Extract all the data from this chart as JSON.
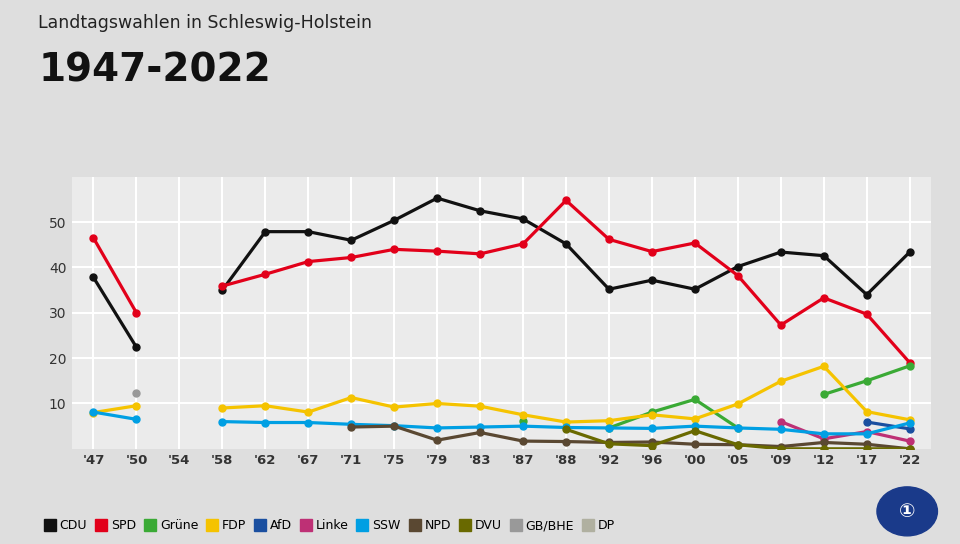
{
  "title_top": "Landtagswahlen in Schleswig-Holstein",
  "title_main": "1947-2022",
  "year_labels": [
    "'47",
    "'50",
    "'54",
    "'58",
    "'62",
    "'67",
    "'71",
    "'75",
    "'79",
    "'83",
    "'87",
    "'88",
    "'92",
    "'96",
    "'00",
    "'05",
    "'09",
    "'12",
    "'17",
    "'22"
  ],
  "series": [
    {
      "name": "CDU",
      "color": "#111111",
      "values": [
        37.8,
        22.4,
        null,
        35.0,
        47.9,
        47.9,
        46.0,
        50.4,
        55.3,
        52.5,
        50.7,
        45.2,
        35.2,
        37.2,
        35.2,
        40.2,
        43.4,
        42.6,
        34.0,
        43.4
      ]
    },
    {
      "name": "SPD",
      "color": "#e2001a",
      "values": [
        46.5,
        30.0,
        null,
        35.9,
        38.5,
        41.3,
        42.2,
        44.0,
        43.6,
        43.0,
        45.2,
        54.8,
        46.2,
        43.5,
        45.4,
        38.2,
        27.3,
        33.3,
        29.7,
        19.0
      ]
    },
    {
      "name": "Grüne",
      "color": "#3aaa35",
      "values": [
        null,
        null,
        null,
        null,
        null,
        null,
        null,
        null,
        null,
        null,
        6.2,
        null,
        4.6,
        8.1,
        10.9,
        4.6,
        null,
        12.0,
        15.0,
        18.3
      ]
    },
    {
      "name": "FDP",
      "color": "#f5c300",
      "values": [
        8.0,
        9.5,
        null,
        9.0,
        9.5,
        8.1,
        11.3,
        9.2,
        10.0,
        9.4,
        7.5,
        5.9,
        6.2,
        7.5,
        6.6,
        9.9,
        14.9,
        18.2,
        8.2,
        6.4
      ]
    },
    {
      "name": "AfD",
      "color": "#1a4fa0",
      "values": [
        null,
        null,
        null,
        null,
        null,
        null,
        null,
        null,
        null,
        null,
        null,
        null,
        null,
        null,
        null,
        null,
        null,
        null,
        5.9,
        4.4
      ]
    },
    {
      "name": "Linke",
      "color": "#be3075",
      "values": [
        null,
        null,
        null,
        null,
        null,
        null,
        null,
        null,
        null,
        null,
        null,
        null,
        null,
        null,
        null,
        null,
        6.0,
        2.2,
        3.8,
        1.7
      ]
    },
    {
      "name": "SSW",
      "color": "#009fe3",
      "values": [
        8.1,
        6.5,
        null,
        6.0,
        5.8,
        5.8,
        5.4,
        5.1,
        4.6,
        4.8,
        5.0,
        4.7,
        4.6,
        4.5,
        5.0,
        4.6,
        4.3,
        3.3,
        3.3,
        5.7
      ]
    },
    {
      "name": "NPD",
      "color": "#5a4832",
      "values": [
        null,
        null,
        null,
        null,
        null,
        null,
        4.8,
        5.0,
        1.9,
        3.6,
        1.7,
        1.6,
        1.4,
        1.5,
        1.0,
        0.9,
        0.5,
        1.4,
        1.0,
        0.0
      ]
    },
    {
      "name": "DVU",
      "color": "#696900",
      "values": [
        null,
        null,
        null,
        null,
        null,
        null,
        null,
        null,
        null,
        null,
        null,
        4.3,
        1.1,
        0.7,
        4.0,
        0.9,
        0.0,
        0.0,
        0.0,
        0.0
      ]
    },
    {
      "name": "GB/BHE",
      "color": "#999999",
      "values": [
        null,
        12.3,
        null,
        null,
        null,
        null,
        null,
        null,
        null,
        null,
        null,
        null,
        null,
        null,
        null,
        null,
        null,
        null,
        null,
        null
      ]
    },
    {
      "name": "DP",
      "color": "#b0b0a0",
      "values": [
        null,
        null,
        null,
        null,
        null,
        null,
        null,
        null,
        null,
        null,
        null,
        null,
        null,
        null,
        null,
        null,
        null,
        null,
        null,
        null
      ]
    }
  ],
  "ylim": [
    0,
    60
  ],
  "yticks": [
    10,
    20,
    30,
    40,
    50
  ],
  "bg_color": "#dedede",
  "plot_bg": "#ebebeb",
  "grid_color": "#ffffff"
}
